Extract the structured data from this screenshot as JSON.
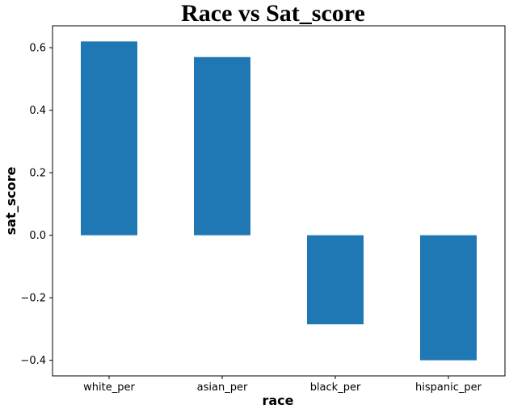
{
  "chart_data": {
    "type": "bar",
    "title": "Race vs Sat_score",
    "xlabel": "race",
    "ylabel": "sat_score",
    "categories": [
      "white_per",
      "asian_per",
      "black_per",
      "hispanic_per"
    ],
    "values": [
      0.62,
      0.57,
      -0.285,
      -0.4
    ],
    "ylim": [
      -0.45,
      0.67
    ],
    "yticks": [
      -0.4,
      -0.2,
      0.0,
      0.2,
      0.4,
      0.6
    ],
    "ytick_labels": [
      "−0.4",
      "−0.2",
      "0.0",
      "0.2",
      "0.4",
      "0.6"
    ],
    "bar_color": "#1f77b4",
    "grid": false,
    "legend": "none"
  }
}
